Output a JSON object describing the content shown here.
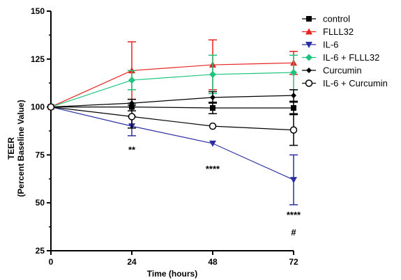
{
  "chart_data": {
    "type": "line",
    "title": "",
    "xlabel": "Time (hours)",
    "ylabel": "TEER",
    "ylabel_sub": "(Percent Baseline Value)",
    "x": [
      0,
      24,
      48,
      72
    ],
    "x_ticks": [
      "0",
      "24",
      "48",
      "72"
    ],
    "y_ticks": [
      "25",
      "50",
      "75",
      "100",
      "125",
      "150"
    ],
    "xlim": [
      0,
      72
    ],
    "ylim": [
      25,
      150
    ],
    "grid": false,
    "legend_position": "top-right",
    "series": [
      {
        "name": "control",
        "color": "#000000",
        "marker": "square",
        "values": [
          100,
          100,
          99.5,
          99.5
        ],
        "error": [
          0,
          2,
          3,
          3
        ]
      },
      {
        "name": "FLLL32",
        "color": "#e8231f",
        "marker": "triangle-up",
        "values": [
          100,
          119,
          122,
          123
        ],
        "error": [
          0,
          15,
          13,
          6
        ]
      },
      {
        "name": "IL-6",
        "color": "#2b2fa3",
        "marker": "triangle-down",
        "values": [
          100,
          90,
          81,
          62
        ],
        "error": [
          0,
          5,
          0,
          13
        ]
      },
      {
        "name": "IL-6 + FLLL32",
        "color": "#1dc47e",
        "marker": "diamond",
        "values": [
          100,
          114,
          117,
          118
        ],
        "error": [
          0,
          5,
          10,
          9
        ]
      },
      {
        "name": "Curcumin",
        "color": "#000000",
        "marker": "small-diamond",
        "values": [
          100,
          102,
          105,
          106
        ],
        "error": [
          0,
          2,
          3,
          3
        ]
      },
      {
        "name": "IL-6 + Curcumin",
        "color": "#000000",
        "marker": "open-circle",
        "values": [
          100,
          95,
          90,
          88
        ],
        "error": [
          0,
          6,
          0,
          8
        ]
      }
    ],
    "annotations": [
      {
        "text": "**",
        "x": 24,
        "y": 76
      },
      {
        "text": "****",
        "x": 48,
        "y": 66
      },
      {
        "text": "****",
        "x": 72,
        "y": 42
      },
      {
        "text": "#",
        "x": 72,
        "y": 33
      }
    ]
  }
}
